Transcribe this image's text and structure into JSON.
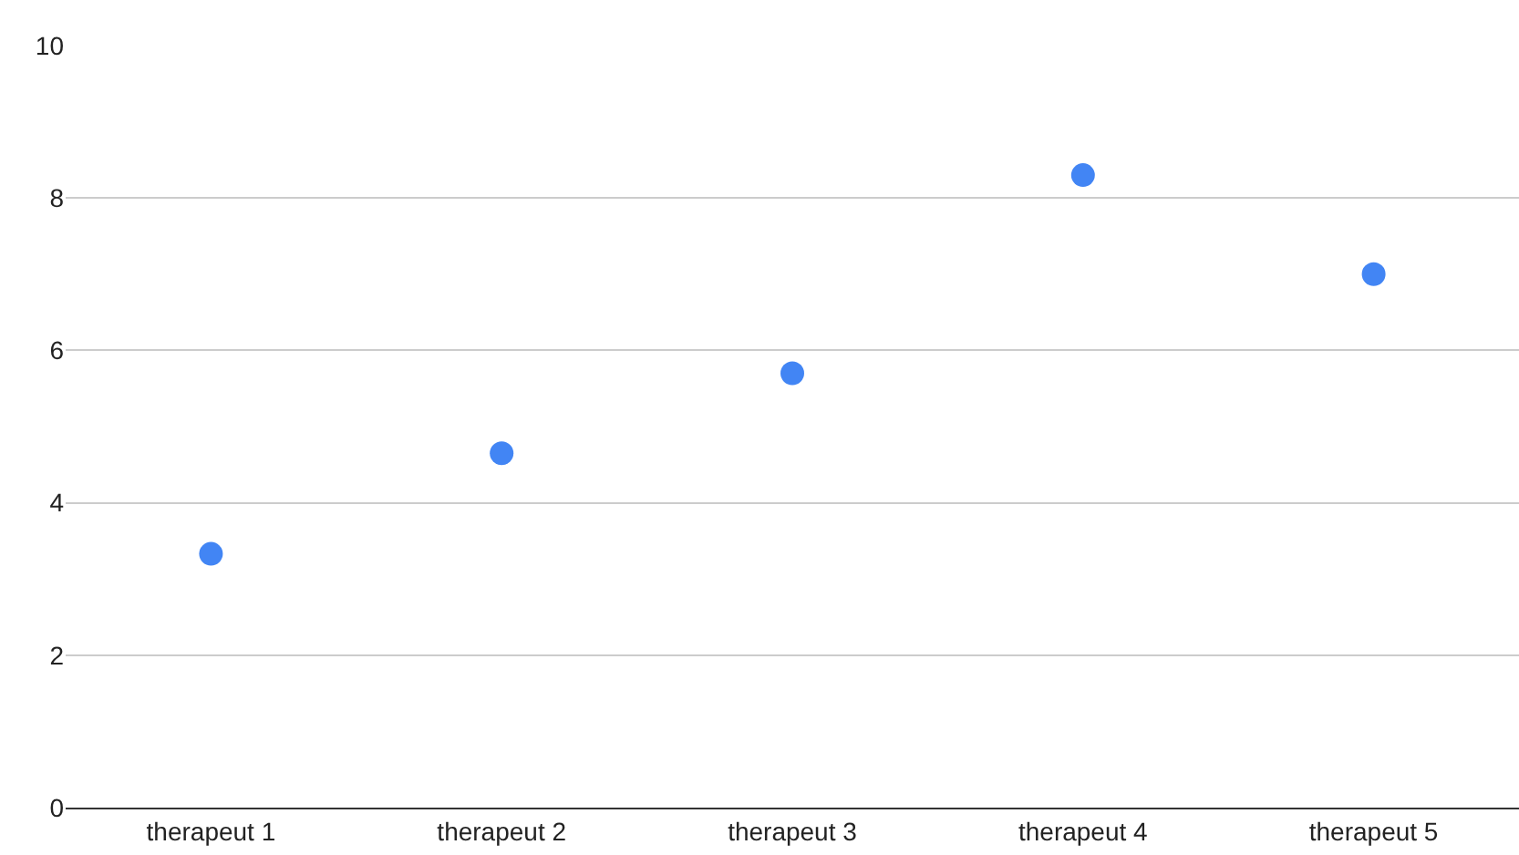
{
  "chart_data": {
    "type": "scatter",
    "categories": [
      "therapeut 1",
      "therapeut 2",
      "therapeut 3",
      "therapeut 4",
      "therapeut 5"
    ],
    "series": [
      {
        "color": "#4285f4",
        "values": [
          3.33,
          4.65,
          5.7,
          8.3,
          7.0
        ]
      }
    ],
    "ylim": [
      0,
      10
    ],
    "yticks": [
      0,
      2,
      4,
      6,
      8,
      10
    ],
    "grid": "y",
    "marker": "circle"
  }
}
